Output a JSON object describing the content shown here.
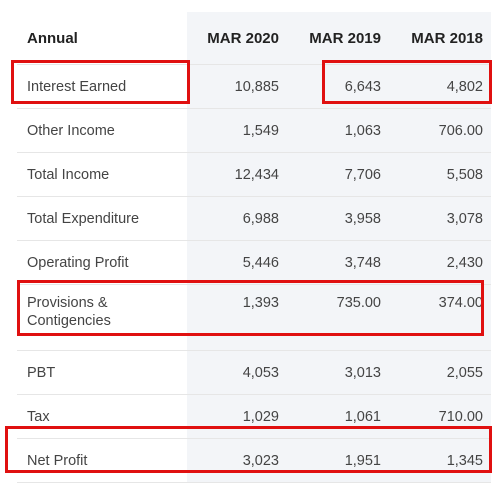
{
  "table": {
    "headers": [
      "Annual",
      "MAR 2020",
      "MAR 2019",
      "MAR 2018"
    ],
    "rows": [
      {
        "label": "Interest Earned",
        "values": [
          "10,885",
          "6,643",
          "4,802"
        ]
      },
      {
        "label": "Other Income",
        "values": [
          "1,549",
          "1,063",
          "706.00"
        ]
      },
      {
        "label": "Total Income",
        "values": [
          "12,434",
          "7,706",
          "5,508"
        ]
      },
      {
        "label": "Total Expenditure",
        "values": [
          "6,988",
          "3,958",
          "3,078"
        ]
      },
      {
        "label": "Operating Profit",
        "values": [
          "5,446",
          "3,748",
          "2,430"
        ]
      },
      {
        "label": "Provisions & Contigencies",
        "values": [
          "1,393",
          "735.00",
          "374.00"
        ]
      },
      {
        "label": "PBT",
        "values": [
          "4,053",
          "3,013",
          "2,055"
        ]
      },
      {
        "label": "Tax",
        "values": [
          "1,029",
          "1,061",
          "710.00"
        ]
      },
      {
        "label": "Net Profit",
        "values": [
          "3,023",
          "1,951",
          "1,345"
        ]
      }
    ]
  },
  "highlight_color": "#e01010"
}
